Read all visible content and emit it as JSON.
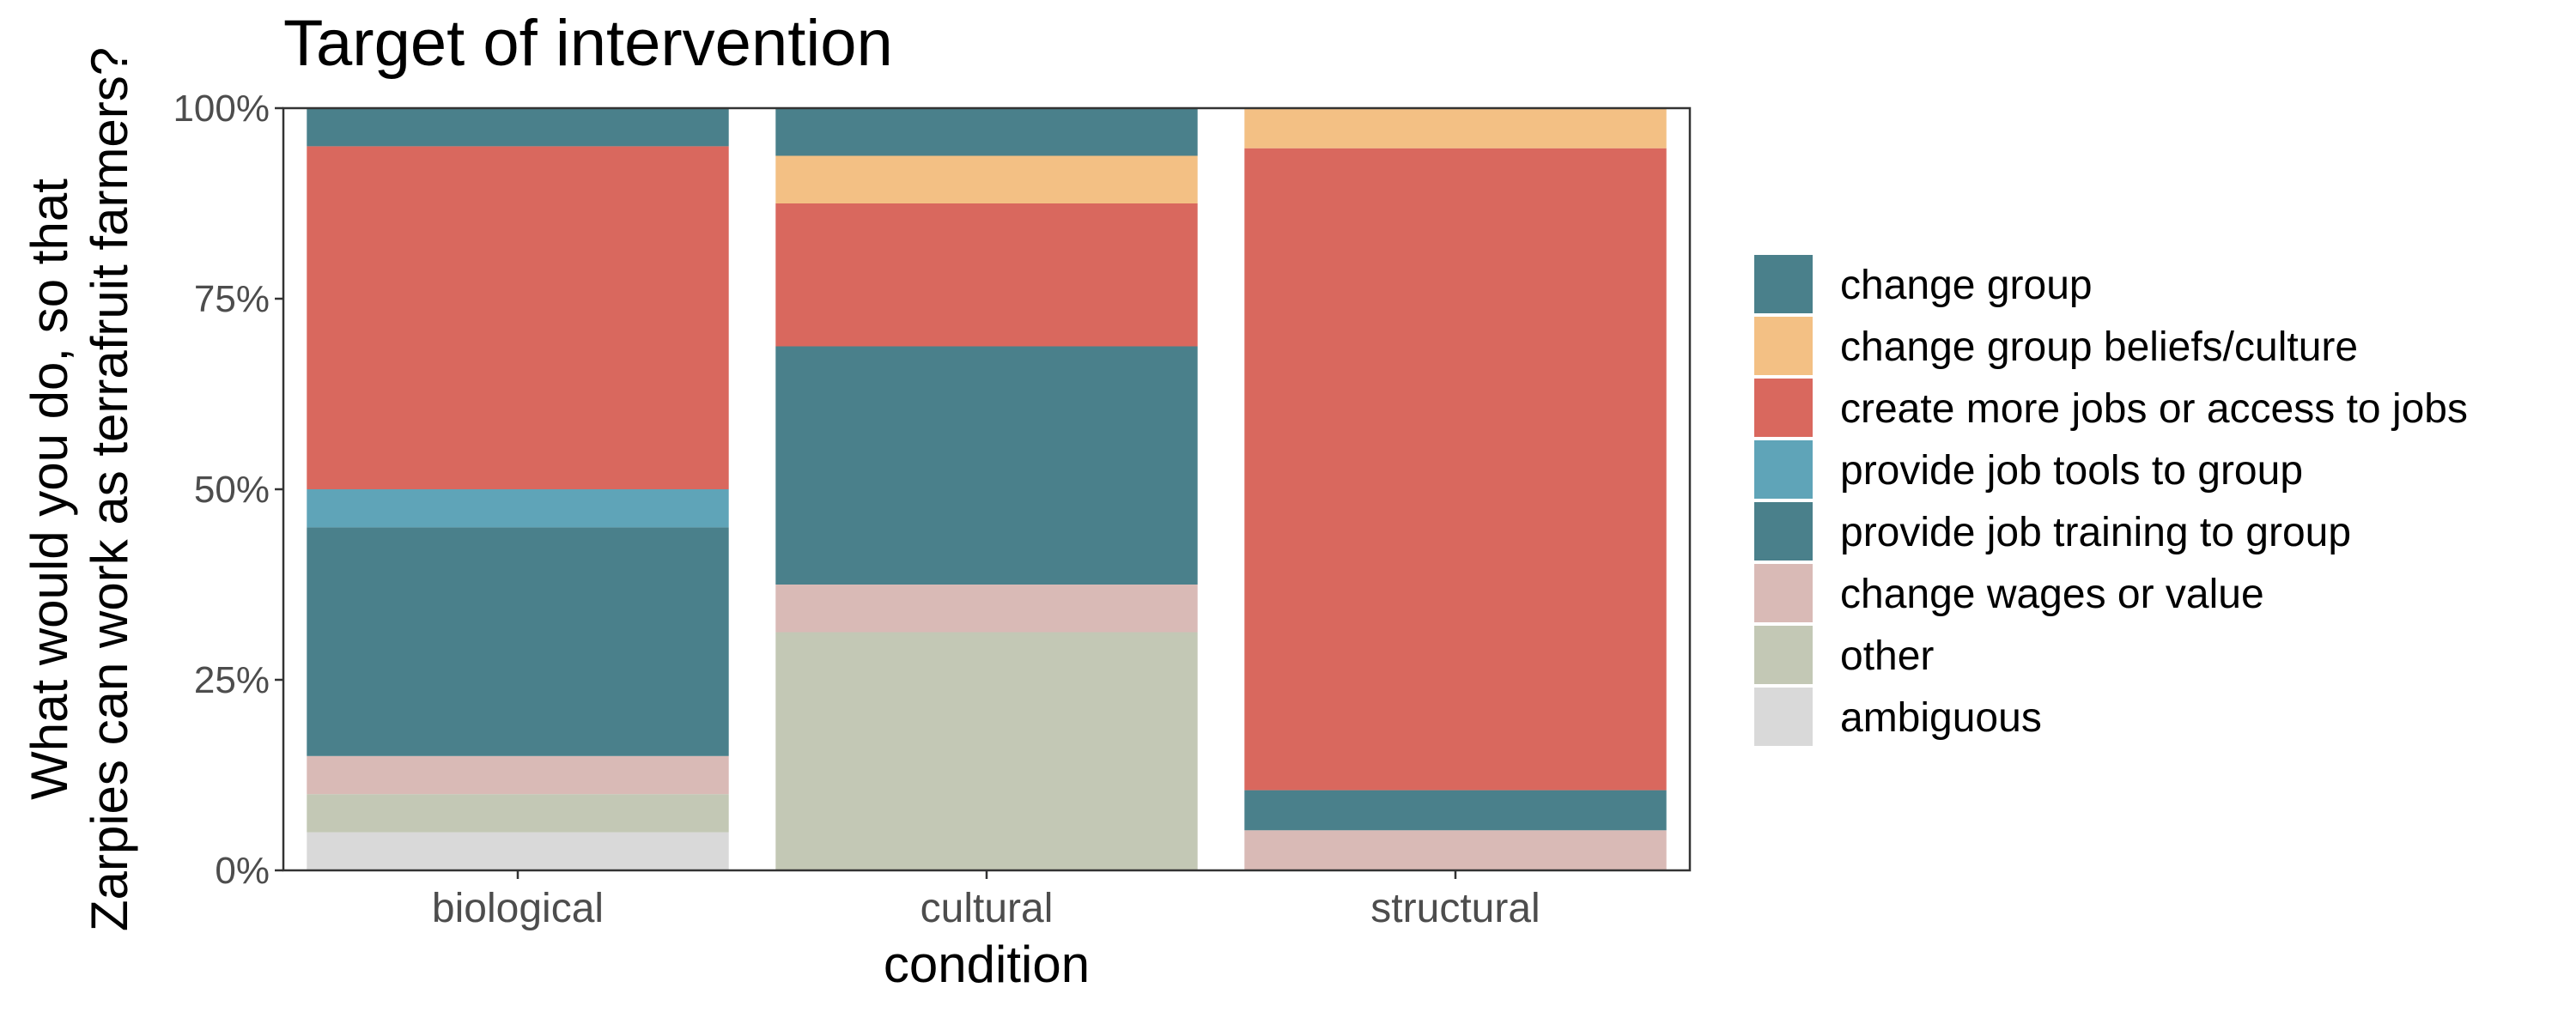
{
  "chart_data": {
    "type": "bar",
    "stacked": true,
    "normalized": true,
    "title": "Target of intervention",
    "xlabel": "condition",
    "ylabel_lines": [
      "What would you do, so that",
      "Zarpies can work as terrafruit farmers?"
    ],
    "categories": [
      "biological",
      "cultural",
      "structural"
    ],
    "y_ticks": [
      "0%",
      "25%",
      "50%",
      "75%",
      "100%"
    ],
    "ylim": [
      0,
      1
    ],
    "legend_position": "right",
    "grid": false,
    "series": [
      {
        "name": "ambiguous",
        "color": "#d9d9d9",
        "values": [
          0.05,
          0.0,
          0.0
        ]
      },
      {
        "name": "other",
        "color": "#c3c8b5",
        "values": [
          0.05,
          0.3125,
          0.0
        ]
      },
      {
        "name": "change wages or value",
        "color": "#d9bab6",
        "values": [
          0.05,
          0.0625,
          0.0526
        ]
      },
      {
        "name": "provide job training to group",
        "color": "#4a808b",
        "values": [
          0.3,
          0.3125,
          0.0526
        ]
      },
      {
        "name": "provide job tools to group",
        "color": "#5fa4b8",
        "values": [
          0.05,
          0.0,
          0.0
        ]
      },
      {
        "name": "create more jobs or access to jobs",
        "color": "#d9685e",
        "values": [
          0.45,
          0.1875,
          0.8422
        ]
      },
      {
        "name": "change group beliefs/culture",
        "color": "#f3c084",
        "values": [
          0.0,
          0.0625,
          0.0526
        ]
      },
      {
        "name": "change group",
        "color": "#4a808b",
        "values": [
          0.05,
          0.0625,
          0.0
        ]
      }
    ],
    "legend_order": [
      "change group",
      "change group beliefs/culture",
      "create more jobs or access to jobs",
      "provide job tools to group",
      "provide job training to group",
      "change wages or value",
      "other",
      "ambiguous"
    ]
  }
}
